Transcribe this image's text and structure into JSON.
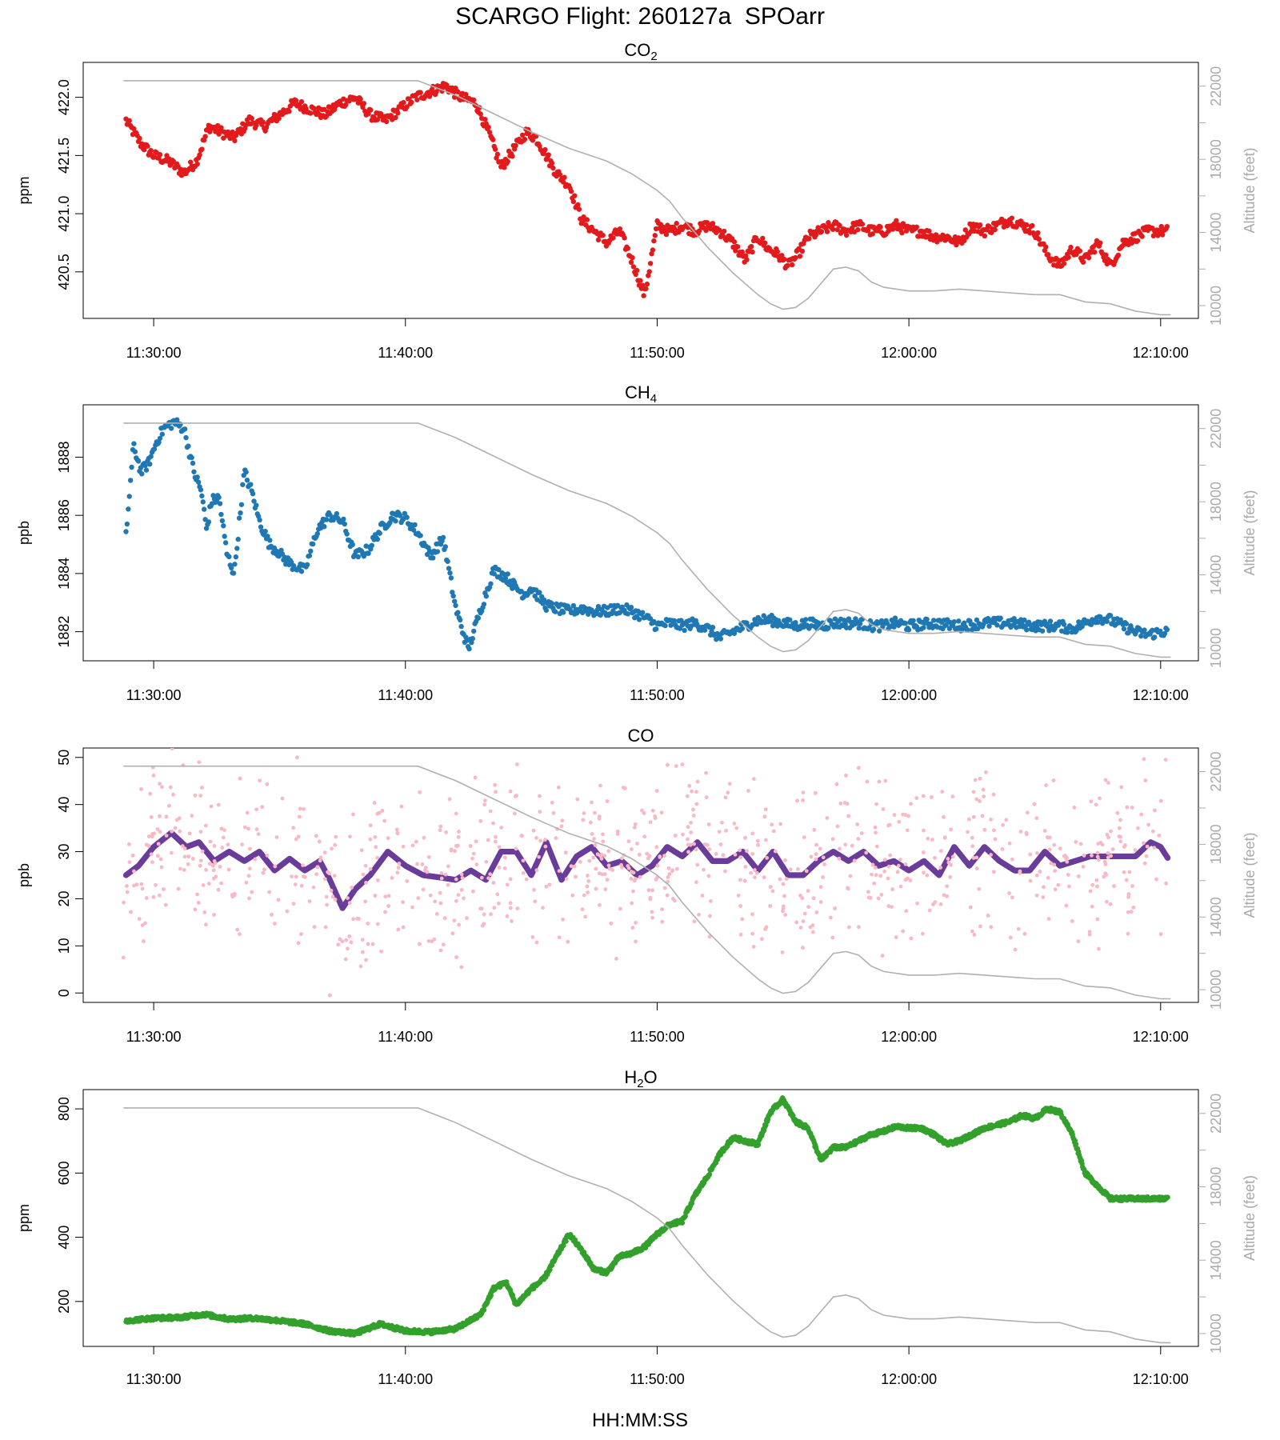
{
  "figure": {
    "title": "SCARGO Flight: 260127a  SPOarr",
    "xlabel": "HH:MM:SS",
    "right_axis_label": "Altitude (feet)",
    "x_tick_labels": [
      "11:30:00",
      "11:40:00",
      "11:50:00",
      "12:00:00",
      "12:10:00"
    ],
    "altitude_ticks": [
      10000,
      14000,
      18000,
      22000
    ],
    "colors": {
      "co2": "#e31a1c",
      "ch4": "#1f78b4",
      "co_raw": "#f9b8c4",
      "co_smooth": "#6a3d9a",
      "h2o": "#33a02c",
      "altitude": "#b0b0b0",
      "axis_gray": "#aaaaaa"
    }
  },
  "chart_data": [
    {
      "type": "scatter",
      "name": "co2-panel",
      "title": "CO",
      "title_subscript": "2",
      "ylabel": "ppm",
      "x_unit": "minutes after 11:30:00",
      "xlim": [
        -2.8,
        41.5
      ],
      "ylim": [
        420.1,
        422.3
      ],
      "y_ticks": [
        420.5,
        421.0,
        421.5,
        422.0
      ],
      "y_tick_labels": [
        "420.5",
        "421.0",
        "421.5",
        "422.0"
      ],
      "series": [
        {
          "name": "CO2",
          "x": [
            -1.1,
            -0.5,
            0.0,
            0.6,
            1.2,
            1.7,
            2.2,
            2.7,
            3.2,
            3.8,
            4.4,
            5.0,
            5.6,
            6.2,
            6.8,
            7.4,
            8.0,
            8.6,
            9.2,
            9.8,
            10.4,
            11.0,
            11.6,
            12.2,
            12.8,
            13.3,
            13.8,
            14.3,
            14.8,
            15.2,
            15.6,
            16.0,
            16.5,
            17.0,
            17.5,
            18.0,
            18.5,
            19.0,
            19.5,
            20.0,
            20.5,
            21.0,
            21.5,
            22.0,
            22.5,
            23.0,
            23.5,
            24.0,
            24.4,
            24.8,
            25.2,
            25.6,
            26.0,
            26.5,
            27.0,
            27.5,
            28.0,
            28.5,
            29.0,
            29.5,
            30.0,
            30.5,
            31.0,
            31.5,
            32.0,
            32.5,
            33.0,
            33.5,
            34.0,
            34.5,
            35.0,
            35.5,
            36.0,
            36.5,
            37.0,
            37.5,
            38.0,
            38.5,
            39.0,
            39.5,
            40.0,
            40.3
          ],
          "y": [
            421.8,
            421.6,
            421.5,
            421.45,
            421.35,
            421.45,
            421.75,
            421.7,
            421.65,
            421.8,
            421.75,
            421.85,
            421.95,
            421.9,
            421.85,
            421.95,
            422.0,
            421.85,
            421.8,
            421.9,
            422.0,
            422.05,
            422.1,
            422.0,
            421.95,
            421.7,
            421.4,
            421.55,
            421.7,
            421.65,
            421.5,
            421.35,
            421.25,
            420.95,
            420.85,
            420.75,
            420.85,
            420.6,
            420.3,
            420.9,
            420.85,
            420.9,
            420.85,
            420.9,
            420.85,
            420.75,
            420.6,
            420.8,
            420.7,
            420.65,
            420.55,
            420.65,
            420.8,
            420.85,
            420.9,
            420.85,
            420.9,
            420.85,
            420.85,
            420.9,
            420.85,
            420.85,
            420.8,
            420.8,
            420.75,
            420.9,
            420.85,
            420.9,
            420.95,
            420.9,
            420.85,
            420.65,
            420.55,
            420.7,
            420.6,
            420.75,
            420.55,
            420.75,
            420.8,
            420.85,
            420.85,
            420.85
          ]
        }
      ]
    },
    {
      "type": "scatter",
      "name": "ch4-panel",
      "title": "CH",
      "title_subscript": "4",
      "ylabel": "ppb",
      "x_unit": "minutes after 11:30:00",
      "xlim": [
        -2.8,
        41.5
      ],
      "ylim": [
        1881.0,
        1889.8
      ],
      "y_ticks": [
        1882,
        1884,
        1886,
        1888
      ],
      "y_tick_labels": [
        "1882",
        "1884",
        "1886",
        "1888"
      ],
      "series": [
        {
          "name": "CH4",
          "x": [
            -1.1,
            -0.8,
            -0.5,
            -0.2,
            0.1,
            0.4,
            0.8,
            1.2,
            1.6,
            1.9,
            2.1,
            2.3,
            2.6,
            2.9,
            3.2,
            3.6,
            3.9,
            4.2,
            4.6,
            4.9,
            5.2,
            5.5,
            6.0,
            6.5,
            7.0,
            7.5,
            8.0,
            8.5,
            9.0,
            9.5,
            10.0,
            10.5,
            11.0,
            11.5,
            12.0,
            12.5,
            13.0,
            13.5,
            13.8,
            14.1,
            14.4,
            14.7,
            15.0,
            15.3,
            15.6,
            16.0,
            16.5,
            17.0,
            17.5,
            18.0,
            18.5,
            19.0,
            19.5,
            20.0,
            20.5,
            21.0,
            21.5,
            22.0,
            22.5,
            23.0,
            23.5,
            24.0,
            24.5,
            25.0,
            25.5,
            26.0,
            26.5,
            27.0,
            27.5,
            28.0,
            28.5,
            29.0,
            29.5,
            30.0,
            31.0,
            32.0,
            33.0,
            34.0,
            35.0,
            36.0,
            36.5,
            37.0,
            37.5,
            38.0,
            38.5,
            39.0,
            39.5,
            40.0,
            40.3
          ],
          "y": [
            1885.3,
            1888.4,
            1887.5,
            1887.8,
            1888.5,
            1889.0,
            1889.2,
            1889.0,
            1887.5,
            1886.8,
            1885.5,
            1886.5,
            1886.6,
            1884.7,
            1884.0,
            1887.5,
            1886.8,
            1885.8,
            1885.0,
            1884.8,
            1884.5,
            1884.3,
            1884.1,
            1885.5,
            1886.0,
            1885.8,
            1884.6,
            1884.8,
            1885.5,
            1886.0,
            1885.9,
            1885.4,
            1884.6,
            1885.2,
            1882.8,
            1881.4,
            1882.8,
            1884.1,
            1884.0,
            1883.8,
            1883.5,
            1883.3,
            1883.5,
            1883.2,
            1882.9,
            1882.8,
            1882.7,
            1882.8,
            1882.7,
            1882.7,
            1882.8,
            1882.7,
            1882.5,
            1882.2,
            1882.3,
            1882.2,
            1882.3,
            1882.1,
            1881.8,
            1882.0,
            1882.2,
            1882.4,
            1882.4,
            1882.3,
            1882.2,
            1882.3,
            1882.2,
            1882.3,
            1882.3,
            1882.3,
            1882.2,
            1882.2,
            1882.3,
            1882.2,
            1882.3,
            1882.2,
            1882.3,
            1882.3,
            1882.2,
            1882.2,
            1882.1,
            1882.3,
            1882.5,
            1882.4,
            1882.2,
            1882.0,
            1881.9,
            1882.0,
            1882.0
          ]
        }
      ]
    },
    {
      "type": "scatter",
      "name": "co-panel",
      "title": "CO",
      "title_subscript": "",
      "ylabel": "ppb",
      "x_unit": "minutes after 11:30:00",
      "xlim": [
        -2.8,
        41.5
      ],
      "ylim": [
        -2,
        52
      ],
      "y_ticks": [
        0,
        10,
        20,
        30,
        40,
        50
      ],
      "y_tick_labels": [
        "0",
        "10",
        "20",
        "30",
        "40",
        "50"
      ],
      "series": [
        {
          "name": "CO smoothed",
          "x": [
            -1.1,
            -0.6,
            0.0,
            0.7,
            1.3,
            1.8,
            2.4,
            3.0,
            3.6,
            4.2,
            4.8,
            5.4,
            6.0,
            6.6,
            7.0,
            7.5,
            8.0,
            8.6,
            9.3,
            10.0,
            10.7,
            11.4,
            12.0,
            12.6,
            13.2,
            13.8,
            14.4,
            15.0,
            15.6,
            16.2,
            16.8,
            17.4,
            18.0,
            18.6,
            19.2,
            19.8,
            20.4,
            21.0,
            21.6,
            22.2,
            22.8,
            23.4,
            24.0,
            24.6,
            25.2,
            25.8,
            26.4,
            27.0,
            27.6,
            28.2,
            28.8,
            29.4,
            30.0,
            30.6,
            31.2,
            31.8,
            32.4,
            33.0,
            33.6,
            34.2,
            34.8,
            35.4,
            36.0,
            36.6,
            37.2,
            37.8,
            38.4,
            39.0,
            39.6,
            40.0,
            40.3
          ],
          "y": [
            25.0,
            27.0,
            31.0,
            34.0,
            31.0,
            32.0,
            28.0,
            30.0,
            28.0,
            30.0,
            26.0,
            28.5,
            26.0,
            28.0,
            24.0,
            18.0,
            22.0,
            25.0,
            30.0,
            27.0,
            25.0,
            24.5,
            24.0,
            26.0,
            24.0,
            30.0,
            30.0,
            25.0,
            32.0,
            24.0,
            29.0,
            31.0,
            27.0,
            28.0,
            25.0,
            27.0,
            31.0,
            29.0,
            32.0,
            28.0,
            28.0,
            30.0,
            26.0,
            30.0,
            25.0,
            25.0,
            28.0,
            30.0,
            28.0,
            30.0,
            27.0,
            28.0,
            26.0,
            28.0,
            25.0,
            31.0,
            27.0,
            31.0,
            28.0,
            26.0,
            26.0,
            30.0,
            27.0,
            28.0,
            29.0,
            29.0,
            29.0,
            29.0,
            32.0,
            31.0,
            28.5
          ]
        },
        {
          "name": "CO raw",
          "x_range": [
            -1.2,
            40.4
          ],
          "center": "smoothed",
          "spread": [
            -18,
            20
          ],
          "extremes": [
            {
              "x": 7.0,
              "y": -0.5
            },
            {
              "x": 5.7,
              "y": 50.0
            },
            {
              "x": 40.2,
              "y": 49.5
            },
            {
              "x": -1.2,
              "y": 7.5
            },
            {
              "x": 21.0,
              "y": 48.5
            }
          ]
        }
      ]
    },
    {
      "type": "scatter",
      "name": "h2o-panel",
      "title": "H",
      "title_subscript": "2",
      "title_suffix": "O",
      "ylabel": "ppm",
      "x_unit": "minutes after 11:30:00",
      "xlim": [
        -2.8,
        41.5
      ],
      "ylim": [
        60,
        860
      ],
      "y_ticks": [
        200,
        400,
        600,
        800
      ],
      "y_tick_labels": [
        "200",
        "400",
        "600",
        "800"
      ],
      "series": [
        {
          "name": "H2O",
          "x": [
            -1.1,
            0.0,
            1.0,
            2.0,
            3.0,
            4.0,
            5.0,
            6.0,
            7.0,
            8.0,
            9.0,
            10.0,
            11.0,
            12.0,
            13.0,
            13.5,
            14.0,
            14.4,
            15.0,
            15.5,
            16.0,
            16.5,
            17.0,
            17.5,
            18.0,
            18.5,
            19.0,
            19.5,
            20.0,
            20.5,
            21.0,
            21.5,
            22.0,
            22.5,
            23.0,
            23.5,
            24.0,
            24.5,
            25.0,
            25.5,
            26.0,
            26.5,
            27.0,
            27.5,
            28.0,
            28.5,
            29.0,
            29.5,
            30.0,
            30.5,
            31.0,
            31.5,
            32.0,
            32.5,
            33.0,
            33.5,
            34.0,
            34.5,
            35.0,
            35.5,
            36.0,
            36.5,
            37.0,
            37.5,
            38.0,
            38.5,
            39.0,
            39.5,
            40.0,
            40.3
          ],
          "y": [
            140,
            148,
            150,
            160,
            145,
            148,
            140,
            130,
            108,
            100,
            130,
            108,
            105,
            115,
            160,
            240,
            260,
            190,
            240,
            270,
            340,
            410,
            360,
            300,
            290,
            340,
            350,
            370,
            410,
            440,
            450,
            530,
            590,
            660,
            710,
            700,
            690,
            790,
            830,
            760,
            740,
            640,
            680,
            680,
            700,
            720,
            730,
            745,
            740,
            740,
            720,
            690,
            700,
            720,
            740,
            750,
            760,
            780,
            770,
            800,
            790,
            720,
            600,
            560,
            520,
            520,
            520,
            520,
            520,
            520
          ]
        }
      ]
    }
  ],
  "altitude_profile": {
    "name": "Altitude",
    "unit": "feet",
    "x": [
      -1.2,
      10.0,
      10.5,
      12.0,
      13.5,
      15.0,
      16.5,
      18.0,
      19.0,
      20.0,
      20.5,
      21.0,
      22.0,
      23.0,
      24.0,
      24.5,
      25.0,
      25.5,
      26.0,
      26.5,
      27.0,
      27.5,
      28.0,
      28.5,
      29.0,
      30.0,
      31.0,
      32.0,
      33.0,
      34.0,
      35.0,
      36.0,
      37.0,
      38.0,
      39.0,
      40.0,
      40.4
    ],
    "y": [
      22300,
      22300,
      22300,
      21500,
      20500,
      19500,
      18600,
      17900,
      17200,
      16300,
      15700,
      14800,
      13200,
      11800,
      10600,
      10100,
      9800,
      9900,
      10400,
      11200,
      12000,
      12100,
      11900,
      11300,
      11000,
      10800,
      10800,
      10900,
      10800,
      10700,
      10600,
      10600,
      10200,
      10100,
      9700,
      9500,
      9500
    ]
  }
}
